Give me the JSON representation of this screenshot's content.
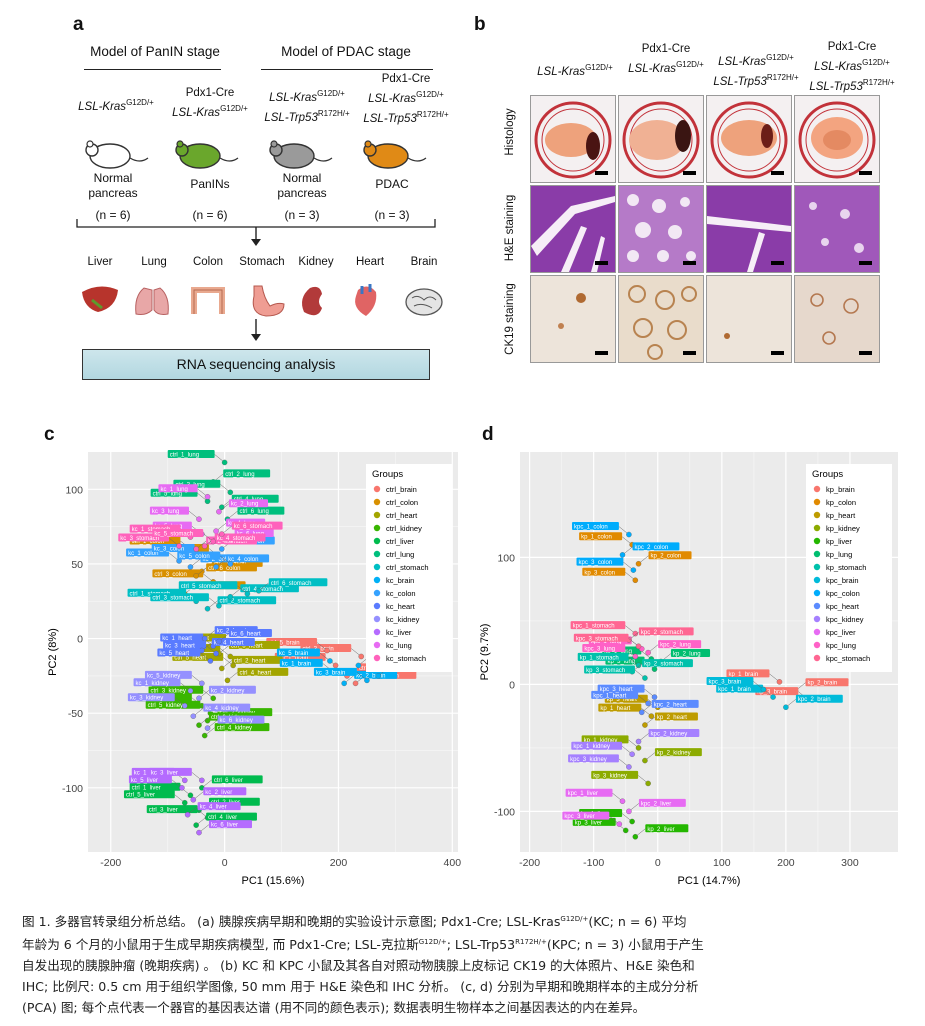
{
  "panel_a": {
    "letter": "a",
    "header_panin": "Model of PanIN stage",
    "header_pdac": "Model of PDAC stage",
    "groups": [
      {
        "lines": [
          "LSL-Kras"
        ],
        "sup": [
          "G12D/+"
        ],
        "state": "Normal pancreas",
        "state_l1": "Normal",
        "state_l2": "pancreas",
        "n": "(n = 6)",
        "color": "#ffffff"
      },
      {
        "lines": [
          "Pdx1-Cre",
          "LSL-Kras"
        ],
        "sup": [
          "",
          "G12D/+"
        ],
        "state": "PanINs",
        "n": "(n = 6)",
        "color": "#6aa72c"
      },
      {
        "lines": [
          "LSL-Kras",
          "LSL-Trp53"
        ],
        "sup": [
          "G12D/+",
          "R172H/+"
        ],
        "state_l1": "Normal",
        "state_l2": "pancreas",
        "n": "(n = 3)",
        "color": "#9a9a9a"
      },
      {
        "lines": [
          "Pdx1-Cre",
          "LSL-Kras",
          "LSL-Trp53"
        ],
        "sup": [
          "",
          "G12D/+",
          "R172H/+"
        ],
        "state": "PDAC",
        "n": "(n = 3)",
        "color": "#e08a16"
      }
    ],
    "organs": [
      "Liver",
      "Lung",
      "Colon",
      "Stomach",
      "Kidney",
      "Heart",
      "Brain"
    ],
    "rna_box": "RNA sequencing analysis"
  },
  "panel_b": {
    "letter": "b",
    "columns": [
      {
        "l1": "LSL-Kras",
        "s1": "G12D/+",
        "l2": "",
        "s2": "",
        "l3": "",
        "s3": ""
      },
      {
        "l1": "Pdx1-Cre",
        "s1": "",
        "l2": "LSL-Kras",
        "s2": "G12D/+",
        "l3": "",
        "s3": ""
      },
      {
        "l1": "LSL-Kras",
        "s1": "G12D/+",
        "l2": "LSL-Trp53",
        "s2": "R172H/+",
        "l3": "",
        "s3": ""
      },
      {
        "l1": "Pdx1-Cre",
        "s1": "",
        "l2": "LSL-Kras",
        "s2": "G12D/+",
        "l3": "LSL-Trp53",
        "s3": "R172H/+"
      }
    ],
    "rows": [
      "Histology",
      "H&E staining",
      "CK19 staining"
    ],
    "colors": {
      "he": "#8a3ca8",
      "ck19": "#e8ddd0",
      "histology_tissue": "#eea27c"
    }
  },
  "chart_data": [
    {
      "panel": "c",
      "type": "scatter",
      "xlabel": "PC1 (15.6%)",
      "ylabel": "PC2 (8%)",
      "xlim": [
        -240,
        410
      ],
      "ylim": [
        -143,
        125
      ],
      "xticks": [
        -200,
        0,
        200,
        400
      ],
      "yticks": [
        -100,
        -50,
        0,
        50,
        100
      ],
      "legend_title": "Groups",
      "legend_position": "top-right",
      "series": [
        {
          "name": "ctrl_brain",
          "color": "#f8766d",
          "points": [
            {
              "x": 195,
              "y": -18
            },
            {
              "x": 215,
              "y": -25
            },
            {
              "x": 240,
              "y": -12
            },
            {
              "x": 265,
              "y": -20
            },
            {
              "x": 180,
              "y": -8
            },
            {
              "x": 230,
              "y": -30
            }
          ]
        },
        {
          "name": "ctrl_colon",
          "color": "#d89000",
          "points": [
            {
              "x": -60,
              "y": 60
            },
            {
              "x": -40,
              "y": 45
            },
            {
              "x": -20,
              "y": 38
            },
            {
              "x": -70,
              "y": 30
            },
            {
              "x": -10,
              "y": 55
            },
            {
              "x": -50,
              "y": 42
            }
          ]
        },
        {
          "name": "ctrl_heart",
          "color": "#a3a500",
          "points": [
            {
              "x": 10,
              "y": -12
            },
            {
              "x": -5,
              "y": -20
            },
            {
              "x": 20,
              "y": -5
            },
            {
              "x": 5,
              "y": -28
            },
            {
              "x": 15,
              "y": -18
            },
            {
              "x": -10,
              "y": -10
            }
          ]
        },
        {
          "name": "ctrl_kidney",
          "color": "#39b600",
          "points": [
            {
              "x": -40,
              "y": -45
            },
            {
              "x": -30,
              "y": -55
            },
            {
              "x": -20,
              "y": -40
            },
            {
              "x": -35,
              "y": -65
            },
            {
              "x": -25,
              "y": -50
            },
            {
              "x": -45,
              "y": -58
            }
          ]
        },
        {
          "name": "ctrl_liver",
          "color": "#00bb4e",
          "points": [
            {
              "x": -60,
              "y": -105
            },
            {
              "x": -45,
              "y": -115
            },
            {
              "x": -30,
              "y": -120
            },
            {
              "x": -50,
              "y": -125
            },
            {
              "x": -70,
              "y": -110
            },
            {
              "x": -40,
              "y": -100
            }
          ]
        },
        {
          "name": "ctrl_lung",
          "color": "#00bf7d",
          "points": [
            {
              "x": 0,
              "y": 118
            },
            {
              "x": -20,
              "y": 105
            },
            {
              "x": 10,
              "y": 98
            },
            {
              "x": -5,
              "y": 88
            },
            {
              "x": -30,
              "y": 92
            },
            {
              "x": 5,
              "y": 80
            }
          ]
        },
        {
          "name": "ctrl_stomach",
          "color": "#00bfc4",
          "points": [
            {
              "x": -50,
              "y": 25
            },
            {
              "x": -30,
              "y": 20
            },
            {
              "x": -10,
              "y": 22
            },
            {
              "x": 10,
              "y": 28
            },
            {
              "x": 40,
              "y": 30
            },
            {
              "x": 60,
              "y": 32
            }
          ]
        },
        {
          "name": "kc_brain",
          "color": "#00b0f6",
          "points": [
            {
              "x": 190,
              "y": -22
            },
            {
              "x": 210,
              "y": -30
            },
            {
              "x": 250,
              "y": -28
            },
            {
              "x": 270,
              "y": -25
            },
            {
              "x": 185,
              "y": -15
            },
            {
              "x": 235,
              "y": -18
            }
          ]
        },
        {
          "name": "kc_colon",
          "color": "#35a2ff",
          "points": [
            {
              "x": -80,
              "y": 52
            },
            {
              "x": -60,
              "y": 48
            },
            {
              "x": -35,
              "y": 55
            },
            {
              "x": -15,
              "y": 48
            },
            {
              "x": 10,
              "y": 50
            },
            {
              "x": -5,
              "y": 60
            }
          ]
        },
        {
          "name": "kc_heart",
          "color": "#5a7bff",
          "points": [
            {
              "x": -20,
              "y": -5
            },
            {
              "x": -35,
              "y": 0
            },
            {
              "x": -15,
              "y": -10
            },
            {
              "x": -40,
              "y": -8
            },
            {
              "x": -25,
              "y": -15
            },
            {
              "x": -10,
              "y": -2
            }
          ]
        },
        {
          "name": "kc_kidney",
          "color": "#9590ff",
          "points": [
            {
              "x": -60,
              "y": -35
            },
            {
              "x": -45,
              "y": -40
            },
            {
              "x": -70,
              "y": -45
            },
            {
              "x": -55,
              "y": -52
            },
            {
              "x": -40,
              "y": -30
            },
            {
              "x": -30,
              "y": -60
            }
          ]
        },
        {
          "name": "kc_liver",
          "color": "#b56bff",
          "points": [
            {
              "x": -70,
              "y": -95
            },
            {
              "x": -55,
              "y": -108
            },
            {
              "x": -40,
              "y": -95
            },
            {
              "x": -65,
              "y": -118
            },
            {
              "x": -75,
              "y": -100
            },
            {
              "x": -45,
              "y": -130
            }
          ]
        },
        {
          "name": "kc_lung",
          "color": "#e76bf3",
          "points": [
            {
              "x": -30,
              "y": 95
            },
            {
              "x": -10,
              "y": 85
            },
            {
              "x": -45,
              "y": 80
            },
            {
              "x": -15,
              "y": 72
            },
            {
              "x": -40,
              "y": 70
            },
            {
              "x": 0,
              "y": 65
            }
          ]
        },
        {
          "name": "kc_stomach",
          "color": "#ff62bc",
          "points": [
            {
              "x": -60,
              "y": 68
            },
            {
              "x": -50,
              "y": 60
            },
            {
              "x": -80,
              "y": 62
            },
            {
              "x": -35,
              "y": 62
            },
            {
              "x": -20,
              "y": 65
            },
            {
              "x": -5,
              "y": 70
            }
          ]
        }
      ]
    },
    {
      "panel": "d",
      "type": "scatter",
      "xlabel": "PC1 (14.7%)",
      "ylabel": "PC2 (9.7%)",
      "xlim": [
        -215,
        375
      ],
      "ylim": [
        -132,
        183
      ],
      "xticks": [
        -200,
        -100,
        0,
        100,
        200,
        300
      ],
      "yticks": [
        -100,
        0,
        100
      ],
      "legend_title": "Groups",
      "legend_position": "top-right",
      "series": [
        {
          "name": "kp_brain",
          "color": "#f8766d",
          "points": [
            {
              "x": 190,
              "y": 2
            },
            {
              "x": 215,
              "y": -5
            },
            {
              "x": 235,
              "y": -12
            }
          ]
        },
        {
          "name": "kp_colon",
          "color": "#e18a00",
          "points": [
            {
              "x": -40,
              "y": 110
            },
            {
              "x": -30,
              "y": 95
            },
            {
              "x": -35,
              "y": 82
            }
          ]
        },
        {
          "name": "kp_heart",
          "color": "#be9c00",
          "points": [
            {
              "x": -10,
              "y": -25
            },
            {
              "x": -20,
              "y": -32
            },
            {
              "x": 0,
              "y": -18
            }
          ]
        },
        {
          "name": "kp_kidney",
          "color": "#8cab00",
          "points": [
            {
              "x": -30,
              "y": -50
            },
            {
              "x": -20,
              "y": -60
            },
            {
              "x": -15,
              "y": -78
            }
          ]
        },
        {
          "name": "kp_liver",
          "color": "#24b700",
          "points": [
            {
              "x": -40,
              "y": -108
            },
            {
              "x": -35,
              "y": -120
            },
            {
              "x": -50,
              "y": -115
            }
          ]
        },
        {
          "name": "kp_lung",
          "color": "#00be70",
          "points": [
            {
              "x": -10,
              "y": 20
            },
            {
              "x": 5,
              "y": 18
            },
            {
              "x": -5,
              "y": 12
            }
          ]
        },
        {
          "name": "kp_stomach",
          "color": "#00c1ab",
          "points": [
            {
              "x": -30,
              "y": 15
            },
            {
              "x": -40,
              "y": 10
            },
            {
              "x": -20,
              "y": 5
            }
          ]
        },
        {
          "name": "kpc_brain",
          "color": "#00bbda",
          "points": [
            {
              "x": 180,
              "y": -10
            },
            {
              "x": 200,
              "y": -18
            },
            {
              "x": 165,
              "y": -4
            }
          ]
        },
        {
          "name": "kpc_colon",
          "color": "#00acfc",
          "points": [
            {
              "x": -45,
              "y": 118
            },
            {
              "x": -55,
              "y": 102
            },
            {
              "x": -38,
              "y": 90
            }
          ]
        },
        {
          "name": "kpc_heart",
          "color": "#5b8bff",
          "points": [
            {
              "x": -15,
              "y": -15
            },
            {
              "x": -25,
              "y": -22
            },
            {
              "x": -5,
              "y": -10
            }
          ]
        },
        {
          "name": "kpc_kidney",
          "color": "#a580ff",
          "points": [
            {
              "x": -40,
              "y": -55
            },
            {
              "x": -30,
              "y": -45
            },
            {
              "x": -45,
              "y": -65
            }
          ]
        },
        {
          "name": "kpc_liver",
          "color": "#e76bf3",
          "points": [
            {
              "x": -55,
              "y": -92
            },
            {
              "x": -45,
              "y": -100
            },
            {
              "x": -60,
              "y": -110
            }
          ]
        },
        {
          "name": "kpc_lung",
          "color": "#ff61c7",
          "points": [
            {
              "x": -25,
              "y": 28
            },
            {
              "x": -15,
              "y": 25
            },
            {
              "x": -35,
              "y": 22
            }
          ]
        },
        {
          "name": "kpc_stomach",
          "color": "#ff6692",
          "points": [
            {
              "x": -35,
              "y": 40
            },
            {
              "x": -45,
              "y": 35
            },
            {
              "x": -30,
              "y": 30
            }
          ]
        }
      ]
    }
  ],
  "caption": {
    "line1": "图 1. 多器官转录组分析总结。 (a) 胰腺疾病早期和晚期的实验设计示意图; Pdx1-Cre; LSL-Kras",
    "line1_sup": "G12D/+",
    "line1_tail": "(KC; n = 6) 平均",
    "line2": "年龄为 6 个月的小鼠用于生成早期疾病模型, 而 Pdx1-Cre; LSL-克拉斯",
    "line2_sup": "G12D/+",
    "line2_mid": "; LSL-Trp53",
    "line2_sup2": "R172H/+",
    "line2_tail": "(KPC; n = 3) 小鼠用于产生",
    "line3": "自发出现的胰腺肿瘤 (晚期疾病) 。 (b) KC 和 KPC 小鼠及其各自对照动物胰腺上皮标记 CK19 的大体照片、H&E 染色和",
    "line4": "IHC; 比例尺: 0.5 cm 用于组织学图像, 50 mm 用于 H&E 染色和 IHC 分析。 (c, d) 分别为早期和晚期样本的主成分分析",
    "line5": "(PCA) 图; 每个点代表一个器官的基因表达谱 (用不同的颜色表示); 数据表明生物样本之间基因表达的内在差异。"
  }
}
